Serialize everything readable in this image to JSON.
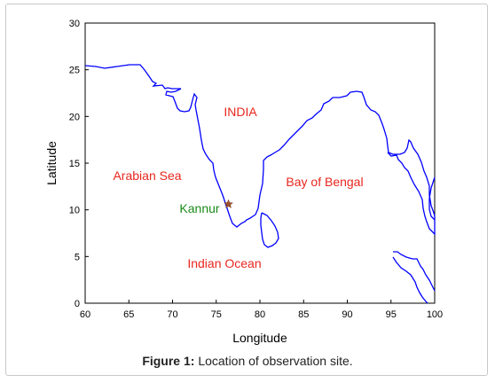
{
  "map": {
    "x_label": "Longitude",
    "y_label": "Latitude",
    "x_ticks": [
      "60",
      "65",
      "70",
      "75",
      "80",
      "85",
      "90",
      "95",
      "100"
    ],
    "y_ticks": [
      "0",
      "5",
      "10",
      "15",
      "20",
      "25",
      "30"
    ],
    "xlim": [
      60,
      100
    ],
    "ylim": [
      0,
      30
    ],
    "coastline_color": "#0000ff",
    "labels": {
      "india": "INDIA",
      "arabian_sea": "Arabian Sea",
      "bay_of_bengal": "Bay of Bengal",
      "indian_ocean": "Indian Ocean",
      "kannur": "Kannur"
    },
    "label_colors": {
      "region": "#e8261e",
      "site": "#1a8a1a"
    },
    "site_marker": {
      "name": "Kannur",
      "lon": 76.4,
      "lat": 10.6,
      "color": "#a0522d"
    }
  },
  "caption": {
    "prefix": "Figure 1:",
    "text": " Location of observation site."
  }
}
